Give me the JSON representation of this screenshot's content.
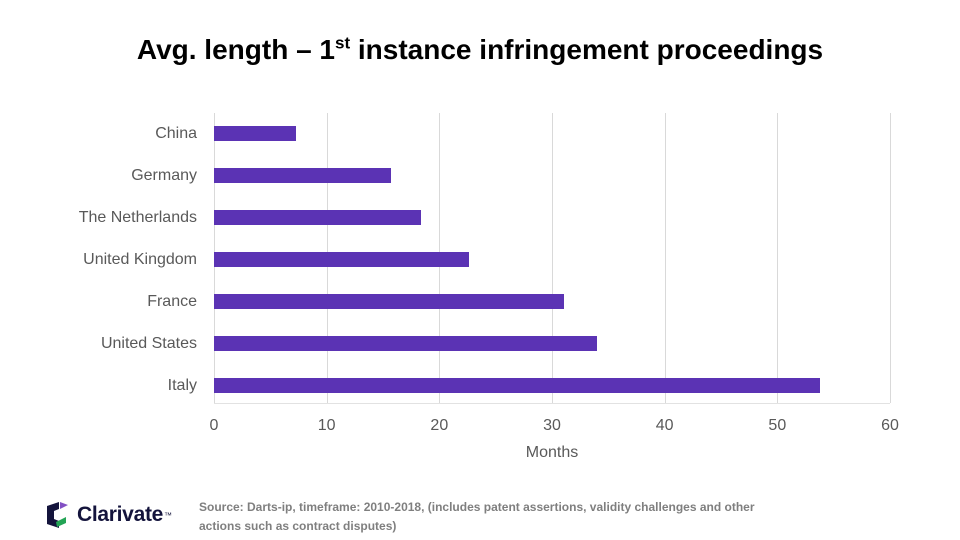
{
  "slide": {
    "title": {
      "prefix": "Avg. length – 1",
      "superscript": "st",
      "suffix": " instance infringement proceedings"
    }
  },
  "chart_data": {
    "type": "bar",
    "orientation": "horizontal",
    "categories": [
      "China",
      "Germany",
      "The Netherlands",
      "United Kingdom",
      "France",
      "United States",
      "Italy"
    ],
    "values": [
      7.3,
      15.7,
      18.4,
      22.6,
      31.1,
      34.0,
      53.8
    ],
    "xlabel": "Months",
    "xlim": [
      0,
      60
    ],
    "xticks": [
      0,
      10,
      20,
      30,
      40,
      50,
      60
    ],
    "grid": true,
    "legend": "none",
    "bar_color": "#5b33b4"
  },
  "colors": {
    "bar": "#5b33b4",
    "gridline": "#d9d9d9",
    "axis_text": "#595959",
    "source_text": "#7f7f7f",
    "logo_navy": "#14143c",
    "logo_green": "#23a455",
    "logo_purple": "#8250c4"
  },
  "footer": {
    "logo_text": "Clarivate",
    "logo_tm": "™",
    "source_line1": "Source: Darts-ip, timeframe: 2010-2018, (includes patent assertions, validity challenges and other",
    "source_line2": "actions such as contract disputes)"
  }
}
